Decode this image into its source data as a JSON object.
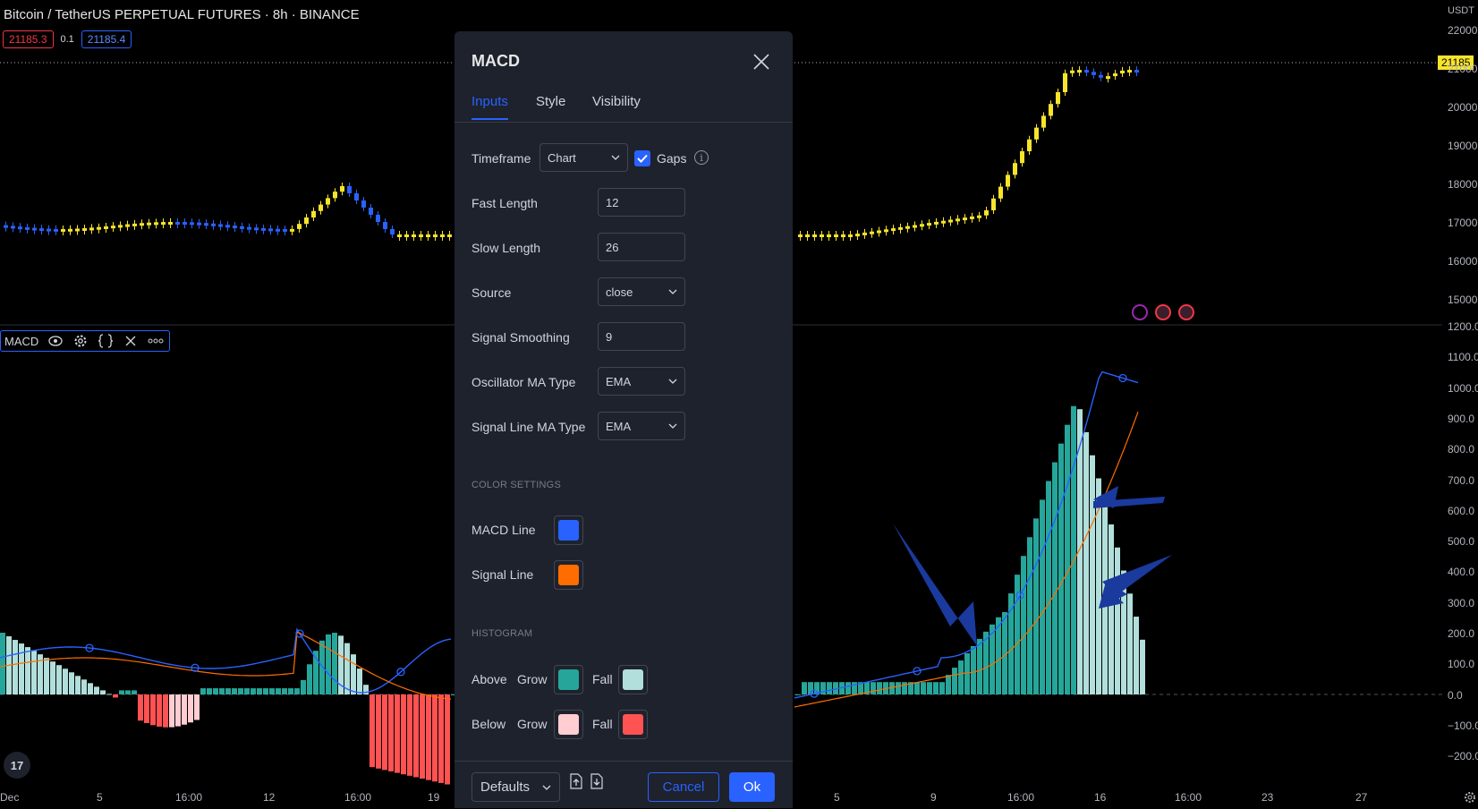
{
  "chart": {
    "title": "Bitcoin / TetherUS PERPETUAL FUTURES · 8h · BINANCE",
    "sell_price": "21185.3",
    "spread": "0.1",
    "buy_price": "21185.4",
    "current_price_label": "21185",
    "currency_label": "USDT",
    "price_axis_labels": [
      "22000",
      "21000",
      "20000",
      "19000",
      "18000",
      "17000",
      "16000",
      "15000"
    ],
    "indicator_axis_labels": [
      "1200.0",
      "1100.0",
      "1000.0",
      "900.0",
      "800.0",
      "700.0",
      "600.0",
      "500.0",
      "400.0",
      "300.0",
      "200.0",
      "100.0",
      "0.0",
      "−100.0",
      "−200.0"
    ],
    "time_axis_labels": [
      "Dec",
      "5",
      "16:00",
      "12",
      "16:00",
      "19",
      "5",
      "9",
      "16:00",
      "16",
      "16:00",
      "23",
      "27"
    ],
    "indicator_legend_name": "MACD",
    "logo_text": "17",
    "colors": {
      "candle_up": "#f7e42b",
      "candle_down": "#2962ff",
      "macd_line": "#2962ff",
      "signal_line": "#ff6d00",
      "hist_above_grow": "#26a69a",
      "hist_above_fall": "#b2dfdb",
      "hist_below_grow": "#ffcdd2",
      "hist_below_fall": "#ff5252",
      "annotation_arrow": "#1a3a9e"
    },
    "icons": [
      "eye-icon",
      "gear-icon",
      "braces-icon",
      "close-icon",
      "more-icon",
      "lightning-icon",
      "us-flag-icon",
      "settings-icon"
    ]
  },
  "dialog": {
    "title": "MACD",
    "tabs": [
      "Inputs",
      "Style",
      "Visibility"
    ],
    "active_tab": "Inputs",
    "timeframe_label": "Timeframe",
    "timeframe_value": "Chart",
    "gaps_label": "Gaps",
    "gaps_checked": true,
    "info_glyph": "i",
    "fast_length_label": "Fast Length",
    "fast_length_value": "12",
    "slow_length_label": "Slow Length",
    "slow_length_value": "26",
    "source_label": "Source",
    "source_value": "close",
    "signal_smoothing_label": "Signal Smoothing",
    "signal_smoothing_value": "9",
    "osc_ma_label": "Oscillator MA Type",
    "osc_ma_value": "EMA",
    "signal_ma_label": "Signal Line MA Type",
    "signal_ma_value": "EMA",
    "color_settings_title": "COLOR SETTINGS",
    "macd_line_label": "MACD Line",
    "macd_line_color": "#2962ff",
    "signal_line_label": "Signal Line",
    "signal_line_color": "#ff6d00",
    "histogram_title": "HISTOGRAM",
    "above_label": "Above",
    "below_label": "Below",
    "grow_label": "Grow",
    "fall_label": "Fall",
    "above_grow_color": "#26a69a",
    "above_fall_color": "#b2dfdb",
    "below_grow_color": "#ffcdd2",
    "below_fall_color": "#ff5252",
    "defaults_label": "Defaults",
    "cancel_label": "Cancel",
    "ok_label": "Ok"
  }
}
